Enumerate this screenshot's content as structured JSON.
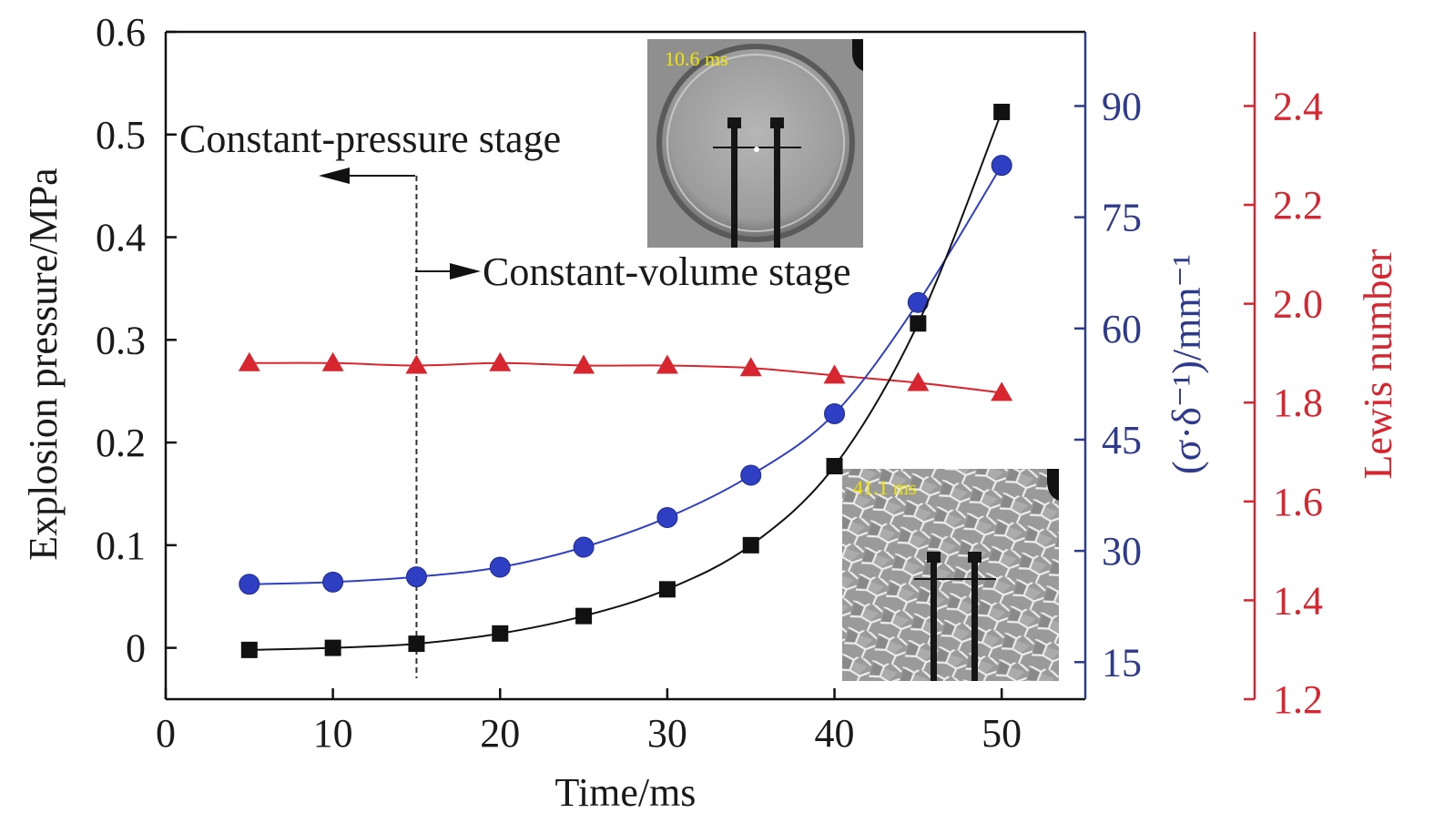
{
  "chart_data": {
    "type": "line",
    "xlabel": "Time/ms",
    "ylabel_left": "Explosion pressure/MPa",
    "ylabel_right1": "(σ·δ⁻¹)/mm⁻¹",
    "ylabel_right2": "Lewis number",
    "xlim": [
      0,
      55
    ],
    "ylim_left": [
      -0.05,
      0.6
    ],
    "ylim_right1": [
      10,
      100
    ],
    "ylim_right2": [
      1.2,
      2.55
    ],
    "x_ticks": [
      0,
      10,
      20,
      30,
      40,
      50
    ],
    "y_left_ticks": [
      0,
      0.1,
      0.2,
      0.3,
      0.4,
      0.5,
      0.6
    ],
    "y_right1_ticks": [
      15,
      30,
      45,
      60,
      75,
      90
    ],
    "y_right2_ticks": [
      1.2,
      1.4,
      1.6,
      1.8,
      2.0,
      2.2,
      2.4
    ],
    "series": [
      {
        "axis": "left",
        "color": "#111111",
        "marker": "square",
        "x": [
          5,
          10,
          15,
          20,
          25,
          30,
          35,
          40,
          45,
          50
        ],
        "values": [
          -0.002,
          0.0,
          0.004,
          0.014,
          0.031,
          0.057,
          0.1,
          0.177,
          0.316,
          0.522
        ]
      },
      {
        "axis": "right1",
        "color": "#2f3fc4",
        "marker": "circle",
        "x": [
          5,
          10,
          15,
          20,
          25,
          30,
          35,
          40,
          45,
          50
        ],
        "values": [
          25.5,
          25.8,
          26.5,
          27.8,
          30.5,
          34.5,
          40.2,
          48.5,
          63.5,
          82.0
        ]
      },
      {
        "axis": "right2",
        "color": "#d7262f",
        "marker": "triangle",
        "x": [
          5,
          10,
          15,
          20,
          25,
          30,
          35,
          40,
          45,
          50
        ],
        "values": [
          1.88,
          1.88,
          1.875,
          1.88,
          1.875,
          1.875,
          1.87,
          1.855,
          1.84,
          1.82
        ]
      }
    ],
    "annotations": {
      "pressure_stage": "Constant-pressure stage",
      "volume_stage": "Constant-volume stage",
      "divider_x": 15
    },
    "insets": [
      {
        "label": "10.6 ms"
      },
      {
        "label": "41.1 ms"
      }
    ]
  }
}
